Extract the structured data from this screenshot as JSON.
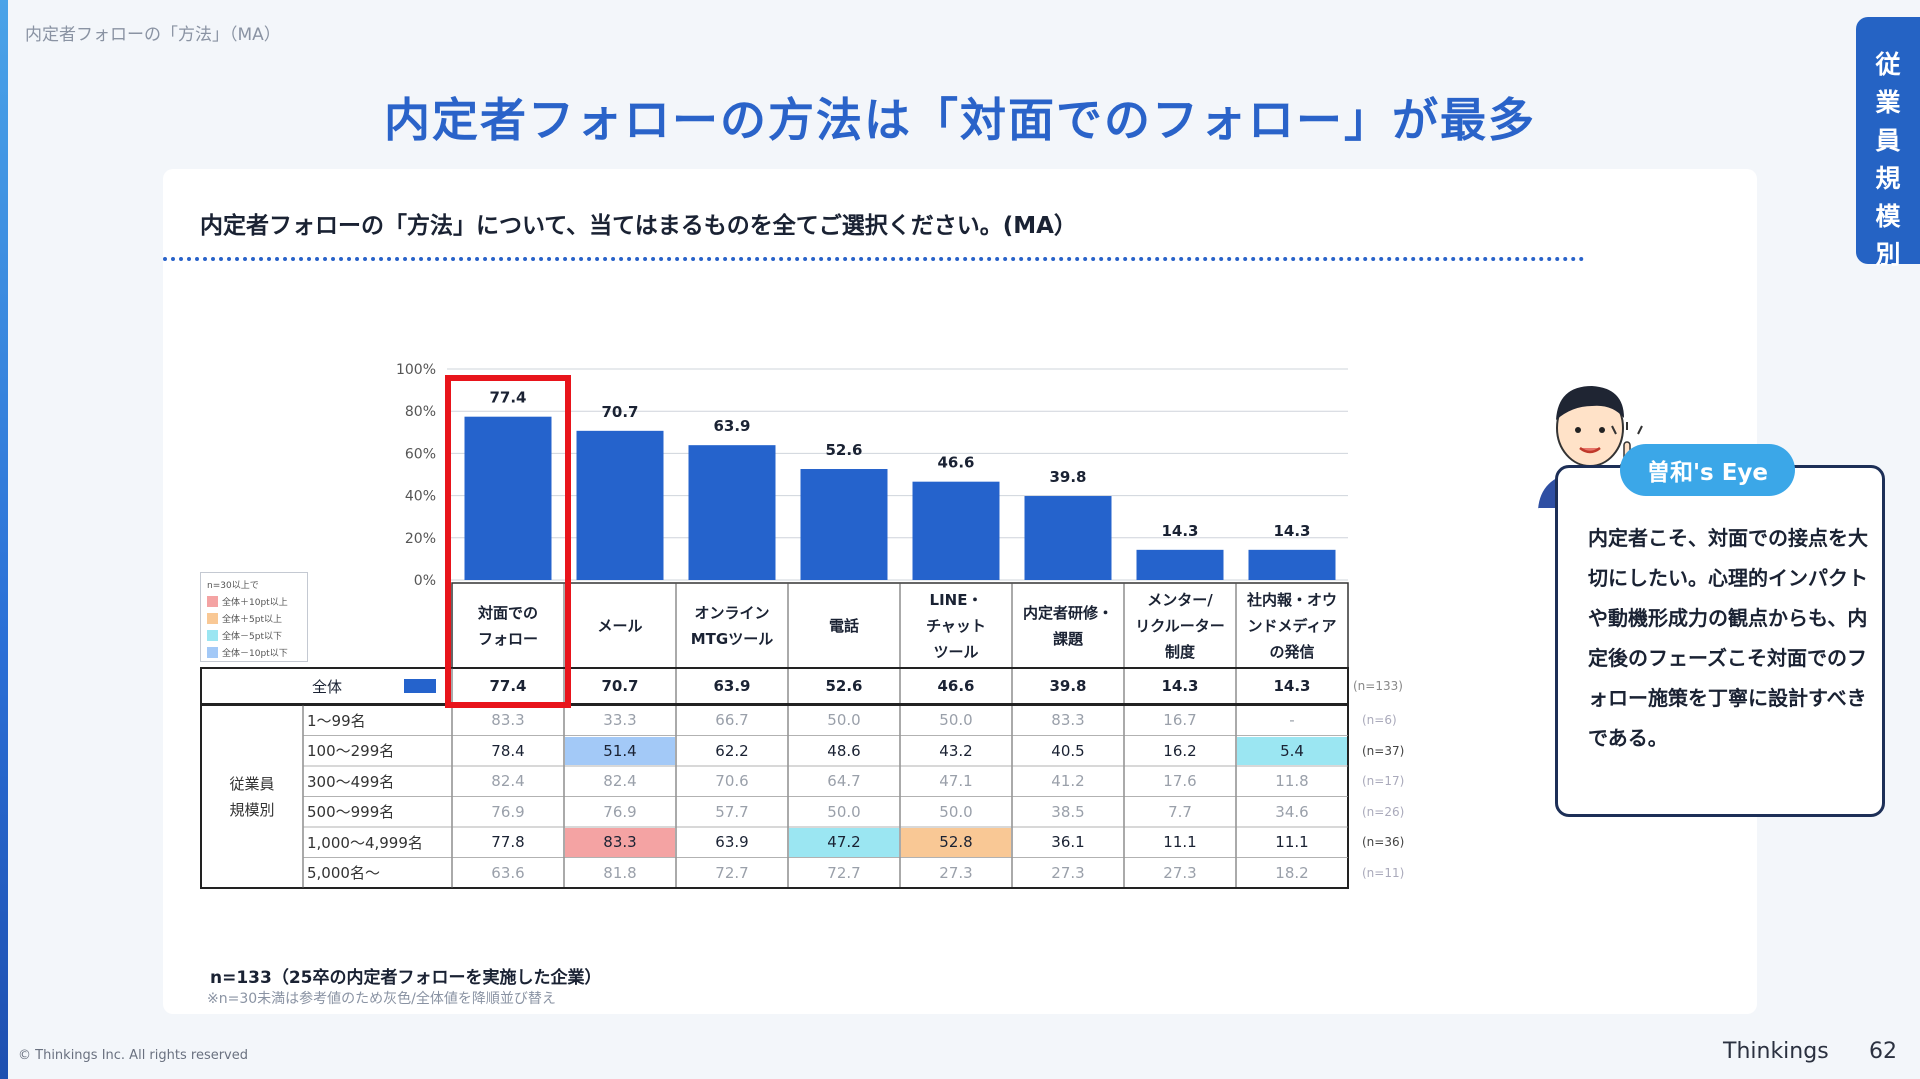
{
  "page": {
    "breadcrumb": "内定者フォローの「方法」（MA）",
    "title": "内定者フォローの方法は「対面でのフォロー」が最多",
    "side_tab": [
      "従",
      "業",
      "員",
      "規",
      "模",
      "別"
    ],
    "question": "内定者フォローの「方法」について、当てはまるものを全てご選択ください。(MA）",
    "footnote_n": "n=133（25卒の内定者フォローを実施した企業）",
    "footnote_note": "※n=30未満は参考値のため灰色/全体値を降順並び替え",
    "copyright": "© Thinkings Inc. All rights reserved",
    "brand": "Thinkings",
    "page_number": "62"
  },
  "legend": {
    "title": "n=30以上で",
    "items": [
      {
        "label": "全体＋10pt以上",
        "color": "#f4a3a3"
      },
      {
        "label": "全体＋5pt以上",
        "color": "#f9c895"
      },
      {
        "label": "全体－5pt以下",
        "color": "#9be6f2"
      },
      {
        "label": "全体－10pt以下",
        "color": "#a3c9f7"
      }
    ]
  },
  "eye": {
    "label": "曽和's Eye",
    "text": "内定者こそ、対面での接点を大切にしたい。心理的インパクトや動機形成力の観点からも、内定後のフェーズこそ対面でのフォロー施策を丁寧に設計すべきである。"
  },
  "colors": {
    "bar": "#2563cc",
    "highlight": "#e8141b",
    "gray_text": "#9aa0aa"
  },
  "chart_data": {
    "type": "bar",
    "categories": [
      "対面での\nフォロー",
      "メール",
      "オンライン\nMTGツール",
      "電話",
      "LINE・\nチャット\nツール",
      "内定者研修・\n課題",
      "メンター/\nリクルーター\n制度",
      "社内報・オウ\nンドメディア\nの発信"
    ],
    "values": [
      77.4,
      70.7,
      63.9,
      52.6,
      46.6,
      39.8,
      14.3,
      14.3
    ],
    "value_labels": [
      "77.4",
      "70.7",
      "63.9",
      "52.6",
      "46.6",
      "39.8",
      "14.3",
      "14.3"
    ],
    "yticks": [
      "100%",
      "80%",
      "60%",
      "40%",
      "20%",
      "0%"
    ],
    "ylim": [
      0,
      100
    ],
    "highlight_index": 0
  },
  "table": {
    "overall": {
      "label": "全体",
      "values": [
        "77.4",
        "70.7",
        "63.9",
        "52.6",
        "46.6",
        "39.8",
        "14.3",
        "14.3"
      ],
      "n": "(n=133)"
    },
    "group_label": "従業員\n規模別",
    "rows": [
      {
        "label": "1～99名",
        "n": "(n=6)",
        "gray": true,
        "values": [
          "83.3",
          "33.3",
          "66.7",
          "50.0",
          "50.0",
          "83.3",
          "16.7",
          "-"
        ],
        "colors": [
          "",
          "",
          "",
          "",
          "",
          "",
          "",
          ""
        ]
      },
      {
        "label": "100～299名",
        "n": "(n=37)",
        "gray": false,
        "values": [
          "78.4",
          "51.4",
          "62.2",
          "48.6",
          "43.2",
          "40.5",
          "16.2",
          "5.4"
        ],
        "colors": [
          "",
          "#a3c9f7",
          "",
          "",
          "",
          "",
          "",
          "#9be6f2"
        ]
      },
      {
        "label": "300～499名",
        "n": "(n=17)",
        "gray": true,
        "values": [
          "82.4",
          "82.4",
          "70.6",
          "64.7",
          "47.1",
          "41.2",
          "17.6",
          "11.8"
        ],
        "colors": [
          "",
          "",
          "",
          "",
          "",
          "",
          "",
          ""
        ]
      },
      {
        "label": "500～999名",
        "n": "(n=26)",
        "gray": true,
        "values": [
          "76.9",
          "76.9",
          "57.7",
          "50.0",
          "50.0",
          "38.5",
          "7.7",
          "34.6"
        ],
        "colors": [
          "",
          "",
          "",
          "",
          "",
          "",
          "",
          ""
        ]
      },
      {
        "label": "1,000～4,999名",
        "n": "(n=36)",
        "gray": false,
        "values": [
          "77.8",
          "83.3",
          "63.9",
          "47.2",
          "52.8",
          "36.1",
          "11.1",
          "11.1"
        ],
        "colors": [
          "",
          "#f4a3a3",
          "",
          "#9be6f2",
          "#f9c895",
          "",
          "",
          ""
        ]
      },
      {
        "label": "5,000名～",
        "n": "(n=11)",
        "gray": true,
        "values": [
          "63.6",
          "81.8",
          "72.7",
          "72.7",
          "27.3",
          "27.3",
          "27.3",
          "18.2"
        ],
        "colors": [
          "",
          "",
          "",
          "",
          "",
          "",
          "",
          ""
        ]
      }
    ]
  }
}
